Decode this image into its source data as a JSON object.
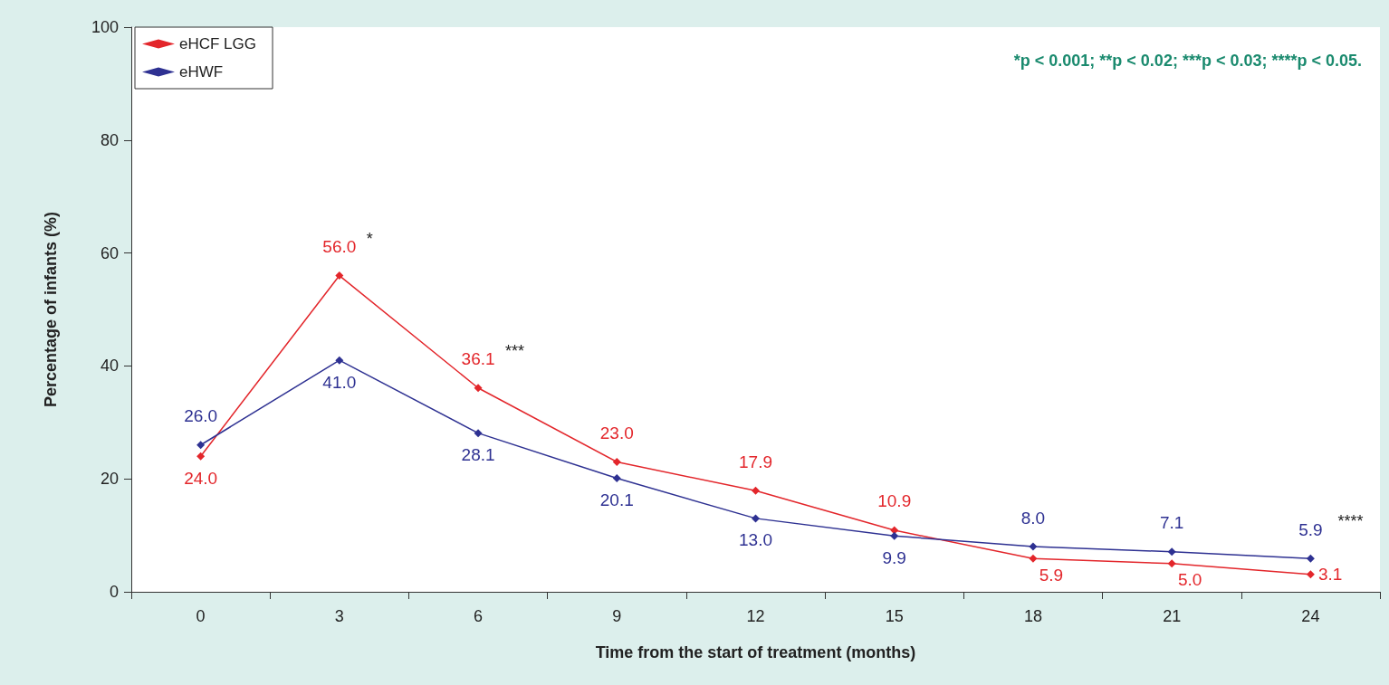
{
  "chart_data": {
    "type": "line",
    "xlabel": "Time from the start of treatment (months)",
    "ylabel": "Percentage of infants (%)",
    "categories": [
      "0",
      "3",
      "6",
      "9",
      "12",
      "15",
      "18",
      "21",
      "24"
    ],
    "series": [
      {
        "name": "eHCF LGG",
        "color": "#e3262b",
        "values": [
          24.0,
          56.0,
          36.1,
          23.0,
          17.9,
          10.9,
          5.9,
          5.0,
          3.1
        ],
        "value_labels": [
          "24.0",
          "56.0",
          "36.1",
          "23.0",
          "17.9",
          "10.9",
          "5.9",
          "5.0",
          "3.1"
        ]
      },
      {
        "name": "eHWF",
        "color": "#2e3192",
        "values": [
          26.0,
          41.0,
          28.1,
          20.1,
          13.0,
          9.9,
          8.0,
          7.1,
          5.9
        ],
        "value_labels": [
          "26.0",
          "41.0",
          "28.1",
          "20.1",
          "13.0",
          "9.9",
          "8.0",
          "7.1",
          "5.9"
        ]
      }
    ],
    "ylim": [
      0,
      100
    ],
    "yticks": [
      0,
      20,
      40,
      60,
      80,
      100
    ],
    "grid": false,
    "legend": "top left",
    "marker": "diamond",
    "line_style": "solid",
    "annotations": [
      "*p < 0.001; **p < 0.02; ***p < 0.03; ****p < 0.05.",
      {
        "text": "*",
        "x": "3",
        "y": 56.0
      },
      {
        "text": "***",
        "x": "6",
        "y": 36.1
      },
      {
        "text": "****",
        "x": "24",
        "y": 5.9
      }
    ]
  }
}
